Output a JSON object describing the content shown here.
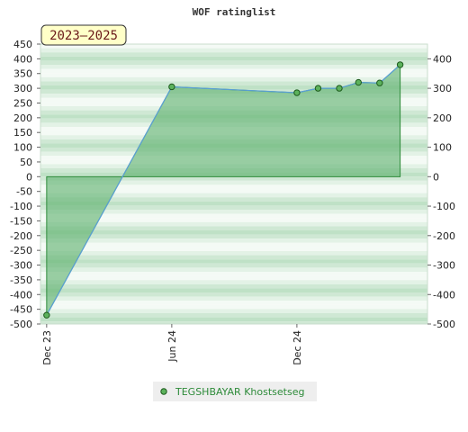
{
  "chart_data": {
    "type": "area",
    "title": "WOF ratinglist",
    "badge": "2023–2025",
    "x_tick_labels": [
      "Dec 23",
      "Jun 24",
      "Dec 24"
    ],
    "x_tick_dates": [
      "2023-12-01",
      "2024-06-01",
      "2024-12-01"
    ],
    "xlim": [
      "2023-11-22",
      "2025-06-10"
    ],
    "ylim_left": [
      -500,
      450
    ],
    "ylim_right": [
      -500,
      450
    ],
    "left_ticks": [
      450,
      400,
      350,
      300,
      250,
      200,
      150,
      100,
      50,
      0,
      -50,
      -100,
      -150,
      -200,
      -250,
      -300,
      -350,
      -400,
      -450,
      -500
    ],
    "right_ticks": [
      400,
      300,
      200,
      100,
      0,
      -100,
      -200,
      -300,
      -400,
      -500
    ],
    "series": [
      {
        "name": "TEGSHBAYAR Khostsetseg",
        "color": "#2e8b3a",
        "points": [
          {
            "x": "2023-12-01",
            "y": -470
          },
          {
            "x": "2024-06-01",
            "y": 305
          },
          {
            "x": "2024-12-01",
            "y": 285
          },
          {
            "x": "2025-01-01",
            "y": 300
          },
          {
            "x": "2025-02-01",
            "y": 300
          },
          {
            "x": "2025-03-01",
            "y": 320
          },
          {
            "x": "2025-04-01",
            "y": 318
          },
          {
            "x": "2025-05-01",
            "y": 380
          }
        ]
      }
    ],
    "grid": "horizontal green bands",
    "legend_position": "bottom"
  }
}
